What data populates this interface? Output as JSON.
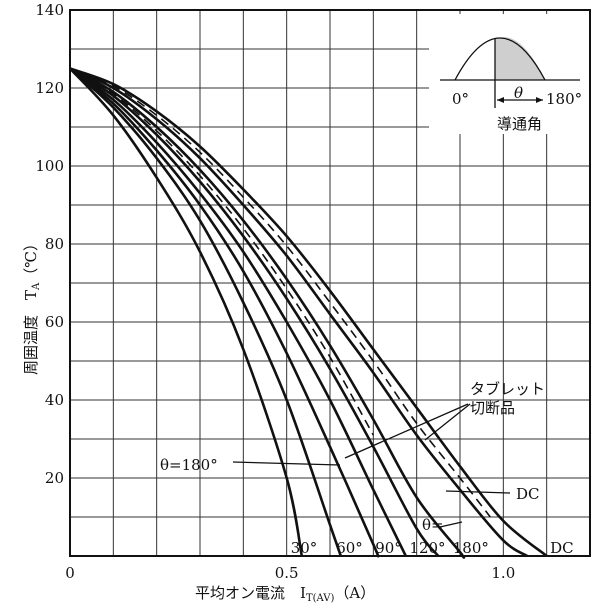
{
  "chart_data": {
    "type": "line",
    "xlabel": "平均オン電流　I",
    "xlabel_sub": "T(AV)",
    "xlabel_unit": "（A）",
    "ylabel": "周囲温度　T",
    "ylabel_sub": "A",
    "ylabel_unit": "（℃）",
    "xlim": [
      0,
      1.2
    ],
    "ylim": [
      0,
      140
    ],
    "x_ticks": [
      {
        "value": 0,
        "label": "0"
      },
      {
        "value": 0.5,
        "label": "0.5"
      },
      {
        "value": 1.0,
        "label": "1.0"
      }
    ],
    "y_ticks": [
      {
        "value": 20,
        "label": "20"
      },
      {
        "value": 40,
        "label": "40"
      },
      {
        "value": 60,
        "label": "60"
      },
      {
        "value": 80,
        "label": "80"
      },
      {
        "value": 100,
        "label": "100"
      },
      {
        "value": 120,
        "label": "120"
      },
      {
        "value": 140,
        "label": "140"
      }
    ],
    "grid": true,
    "series": [
      {
        "name": "30°",
        "style": "solid",
        "label_x": 0.54,
        "points": [
          [
            0,
            125
          ],
          [
            0.1,
            113
          ],
          [
            0.2,
            97
          ],
          [
            0.3,
            78
          ],
          [
            0.4,
            53
          ],
          [
            0.5,
            20
          ],
          [
            0.535,
            0
          ]
        ]
      },
      {
        "name": "60°",
        "style": "solid",
        "label_x": 0.645,
        "points": [
          [
            0,
            125
          ],
          [
            0.1,
            115
          ],
          [
            0.2,
            102
          ],
          [
            0.3,
            86
          ],
          [
            0.4,
            65
          ],
          [
            0.5,
            40
          ],
          [
            0.6,
            8
          ],
          [
            0.625,
            0
          ]
        ]
      },
      {
        "name": "90°",
        "style": "solid",
        "label_x": 0.735,
        "points": [
          [
            0,
            125
          ],
          [
            0.1,
            116
          ],
          [
            0.2,
            104
          ],
          [
            0.3,
            90
          ],
          [
            0.4,
            73
          ],
          [
            0.5,
            52
          ],
          [
            0.6,
            28
          ],
          [
            0.7,
            3
          ],
          [
            0.71,
            0
          ]
        ]
      },
      {
        "name": "120°",
        "style": "solid",
        "label_x": 0.825,
        "points": [
          [
            0,
            125
          ],
          [
            0.1,
            117
          ],
          [
            0.2,
            106
          ],
          [
            0.3,
            93
          ],
          [
            0.4,
            78
          ],
          [
            0.5,
            60
          ],
          [
            0.6,
            40
          ],
          [
            0.7,
            17
          ],
          [
            0.775,
            0
          ]
        ]
      },
      {
        "name": "180°",
        "style": "solid",
        "label_x": 0.925,
        "points": [
          [
            0,
            125
          ],
          [
            0.1,
            118
          ],
          [
            0.2,
            108
          ],
          [
            0.3,
            96
          ],
          [
            0.4,
            82
          ],
          [
            0.5,
            66
          ],
          [
            0.6,
            48
          ],
          [
            0.7,
            28
          ],
          [
            0.8,
            7
          ],
          [
            0.85,
            0
          ]
        ]
      },
      {
        "name": "DC",
        "style": "solid",
        "label_x": 1.135,
        "points": [
          [
            0,
            125
          ],
          [
            0.1,
            120
          ],
          [
            0.2,
            112
          ],
          [
            0.3,
            102
          ],
          [
            0.4,
            90
          ],
          [
            0.5,
            77
          ],
          [
            0.6,
            62
          ],
          [
            0.7,
            47
          ],
          [
            0.8,
            31
          ],
          [
            0.9,
            17
          ],
          [
            1.0,
            4
          ],
          [
            1.055,
            0
          ]
        ]
      },
      {
        "name": "180°",
        "style": "solid",
        "points": [
          [
            0,
            125
          ],
          [
            0.1,
            119
          ],
          [
            0.2,
            110
          ],
          [
            0.3,
            99
          ],
          [
            0.4,
            86
          ],
          [
            0.5,
            71
          ],
          [
            0.6,
            54
          ],
          [
            0.7,
            35
          ],
          [
            0.8,
            15
          ],
          [
            0.9,
            1
          ],
          [
            0.905,
            0
          ]
        ]
      },
      {
        "name": "DC",
        "style": "solid",
        "points": [
          [
            0,
            125
          ],
          [
            0.1,
            121
          ],
          [
            0.2,
            114
          ],
          [
            0.3,
            105
          ],
          [
            0.4,
            94
          ],
          [
            0.5,
            82
          ],
          [
            0.6,
            68
          ],
          [
            0.7,
            53
          ],
          [
            0.8,
            38
          ],
          [
            0.9,
            23
          ],
          [
            1.0,
            9
          ],
          [
            1.1,
            0
          ]
        ]
      },
      {
        "name": "180°",
        "style": "dashed",
        "points": [
          [
            0,
            125
          ],
          [
            0.1,
            118.5
          ],
          [
            0.2,
            109
          ],
          [
            0.3,
            97.5
          ],
          [
            0.4,
            84
          ],
          [
            0.5,
            68.5
          ],
          [
            0.6,
            51
          ],
          [
            0.7,
            31
          ]
        ]
      },
      {
        "name": "DC",
        "style": "dashed",
        "points": [
          [
            0,
            125
          ],
          [
            0.1,
            120.5
          ],
          [
            0.2,
            113
          ],
          [
            0.3,
            103.5
          ],
          [
            0.4,
            92
          ],
          [
            0.5,
            79.5
          ],
          [
            0.6,
            65
          ],
          [
            0.7,
            50
          ],
          [
            0.8,
            34
          ],
          [
            0.9,
            20
          ],
          [
            0.97,
            10
          ]
        ]
      }
    ],
    "annotations": {
      "theta_180": "θ=180°",
      "theta_eq": "θ=",
      "tablet_line1": "タブレット",
      "tablet_line2": "切断品",
      "dc": "DC"
    },
    "inset": {
      "left_label": "0°",
      "theta": "θ",
      "right_label": "180°",
      "caption": "導通角"
    }
  }
}
